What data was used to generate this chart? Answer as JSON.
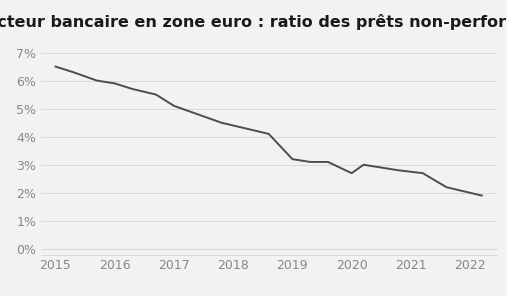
{
  "title": "Secteur bancaire en zone euro : ratio des prêts non-performants",
  "x": [
    2015.0,
    2015.3,
    2015.7,
    2016.0,
    2016.3,
    2016.7,
    2017.0,
    2017.4,
    2017.8,
    2018.2,
    2018.6,
    2019.0,
    2019.3,
    2019.6,
    2020.0,
    2020.2,
    2020.5,
    2020.8,
    2021.2,
    2021.6,
    2022.0,
    2022.2
  ],
  "y": [
    0.065,
    0.063,
    0.06,
    0.059,
    0.057,
    0.055,
    0.051,
    0.048,
    0.045,
    0.043,
    0.041,
    0.032,
    0.031,
    0.031,
    0.027,
    0.03,
    0.029,
    0.028,
    0.027,
    0.022,
    0.02,
    0.019
  ],
  "line_color": "#4d4d4d",
  "line_width": 1.4,
  "background_color": "#f2f2f2",
  "grid_color": "#d9d9d9",
  "yticks": [
    0.0,
    0.01,
    0.02,
    0.03,
    0.04,
    0.05,
    0.06,
    0.07
  ],
  "ylim": [
    -0.002,
    0.075
  ],
  "xlim": [
    2014.75,
    2022.45
  ],
  "xticks": [
    2015,
    2016,
    2017,
    2018,
    2019,
    2020,
    2021,
    2022
  ],
  "title_fontsize": 11.5,
  "tick_fontsize": 9,
  "tick_color": "#888888",
  "title_color": "#1a1a1a"
}
